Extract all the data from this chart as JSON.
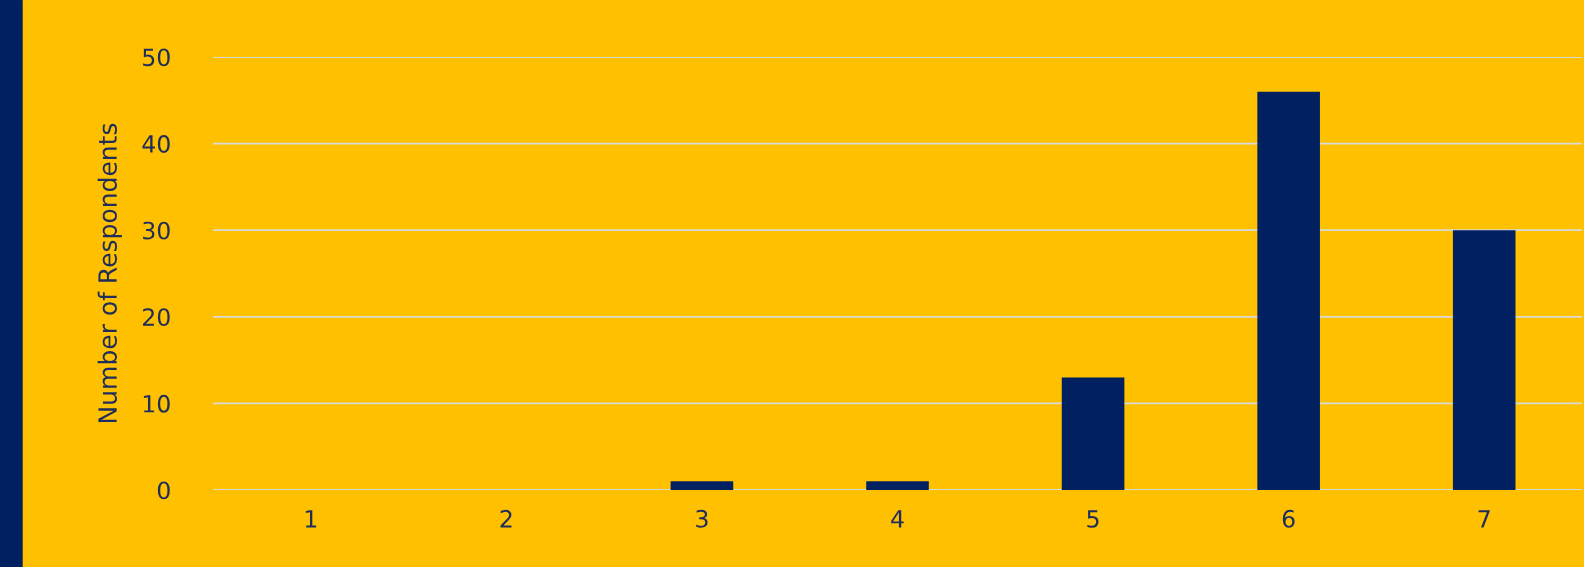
{
  "chart_data": {
    "type": "bar",
    "ylabel": "Number of Respondents",
    "categories": [
      "1",
      "2",
      "3",
      "4",
      "5",
      "6",
      "7"
    ],
    "values": [
      0,
      0,
      1,
      1,
      13,
      46,
      30
    ],
    "color": "#002060",
    "ylim": [
      0,
      50
    ],
    "yticks": [
      0,
      10,
      20,
      30,
      40,
      50
    ],
    "grid": "y"
  }
}
